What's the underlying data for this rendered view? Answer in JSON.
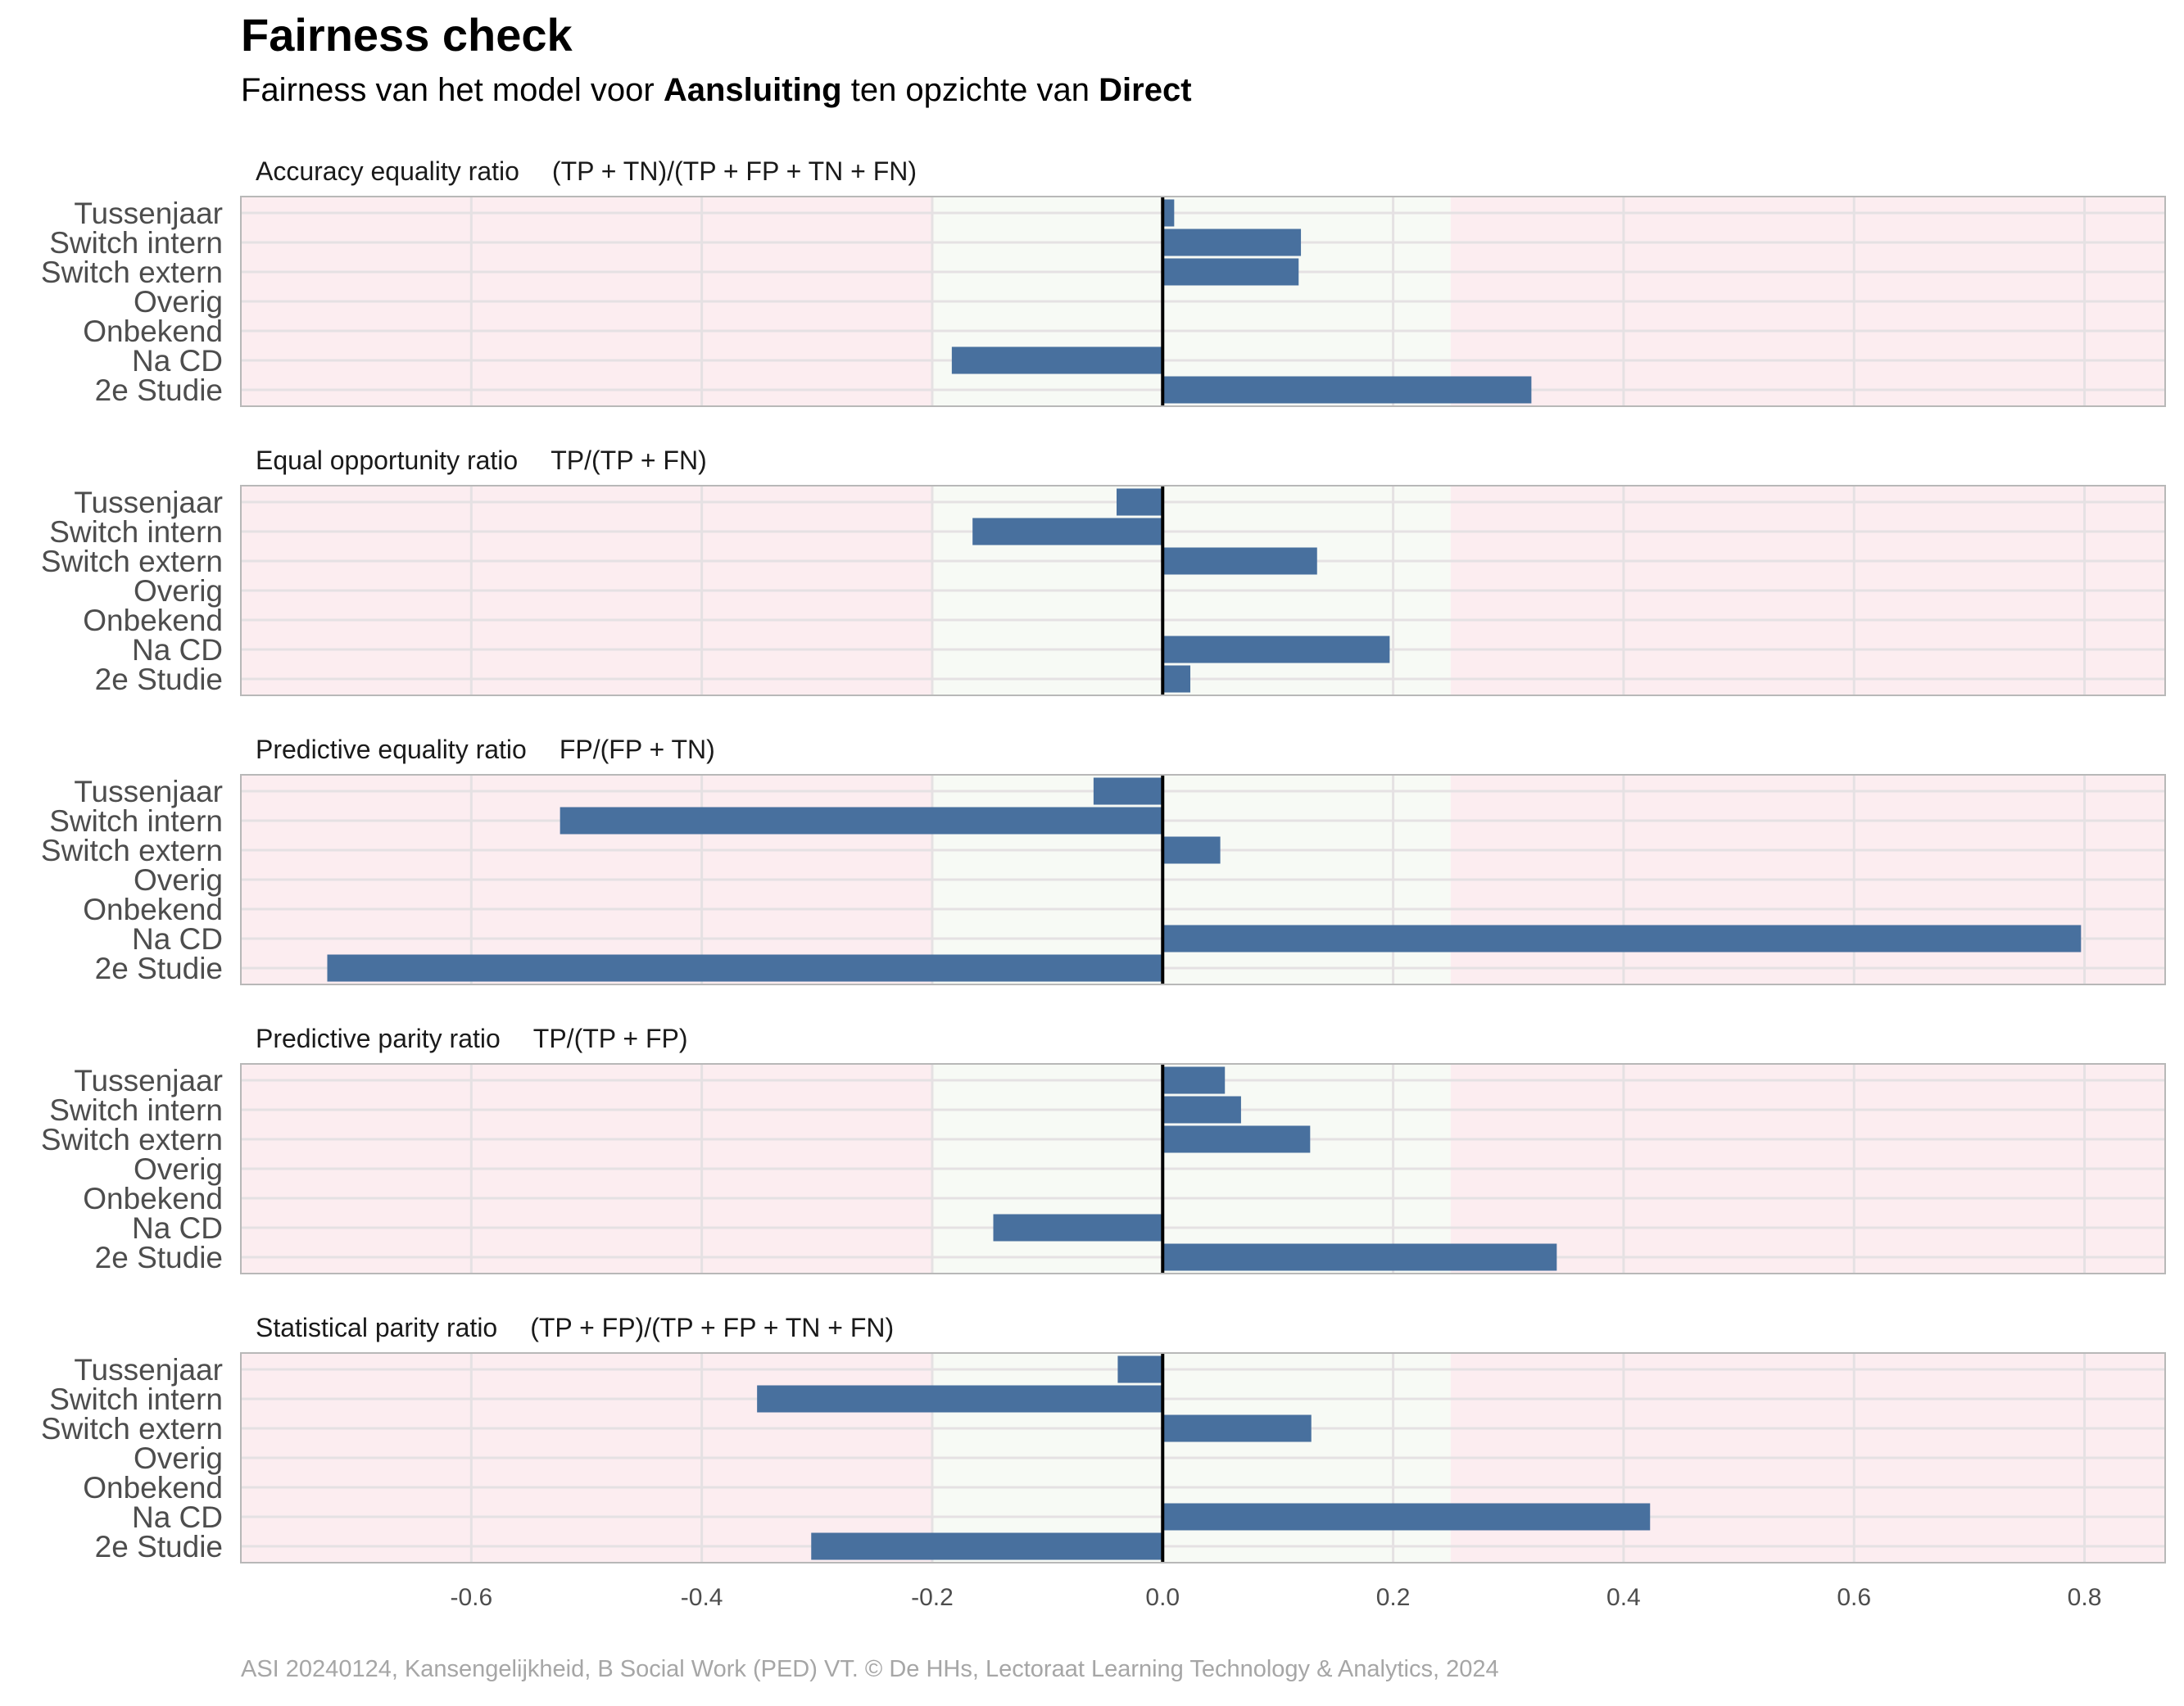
{
  "title": "Fairness check",
  "subtitle": {
    "prefix": "Fairness van het model voor ",
    "outcome": "Aansluiting",
    "middle": " ten opzichte van ",
    "reference": "Direct"
  },
  "caption": "ASI 20240124, Kansengelijkheid, B Social Work (PED) VT. © De HHs, Lectoraat Learning Technology & Analytics, 2024",
  "colors": {
    "bar": "#48709e",
    "red_zone": "#fcedf0",
    "green_zone": "#f7faf5",
    "gridline": "#e5e1e3",
    "zero_line": "#000000",
    "panel_border": "#b8b8b8"
  },
  "chart_data": {
    "type": "bar",
    "orientation": "horizontal",
    "categories": [
      "Tussenjaar",
      "Switch intern",
      "Switch extern",
      "Overig",
      "Onbekend",
      "Na CD",
      "2e Studie"
    ],
    "xlim": [
      -0.8,
      0.87
    ],
    "x_ticks": [
      -0.6,
      -0.4,
      -0.2,
      0.0,
      0.2,
      0.4,
      0.6,
      0.8
    ],
    "x_tick_labels": [
      "-0.6",
      "-0.4",
      "-0.2",
      "0.0",
      "0.2",
      "0.4",
      "0.6",
      "0.8"
    ],
    "fair_zone": [
      -0.2,
      0.25
    ],
    "grid": true,
    "facets": [
      {
        "metric": "Accuracy equality ratio",
        "formula": "(TP + TN)/(TP + FP + TN + FN)",
        "values": [
          0.01,
          0.12,
          0.118,
          null,
          null,
          -0.183,
          0.32
        ]
      },
      {
        "metric": "Equal opportunity ratio",
        "formula": "TP/(TP + FN)",
        "values": [
          -0.04,
          -0.165,
          0.134,
          null,
          null,
          0.197,
          0.024
        ]
      },
      {
        "metric": "Predictive equality ratio",
        "formula": "FP/(FP + TN)",
        "values": [
          -0.06,
          -0.523,
          0.05,
          null,
          null,
          0.797,
          -0.725
        ]
      },
      {
        "metric": "Predictive parity ratio",
        "formula": "TP/(TP + FP)",
        "values": [
          0.054,
          0.068,
          0.128,
          null,
          null,
          -0.147,
          0.342
        ]
      },
      {
        "metric": "Statistical parity ratio",
        "formula": "(TP + FP)/(TP + FP + TN + FN)",
        "values": [
          -0.039,
          -0.352,
          0.129,
          null,
          null,
          0.423,
          -0.305
        ]
      }
    ]
  }
}
